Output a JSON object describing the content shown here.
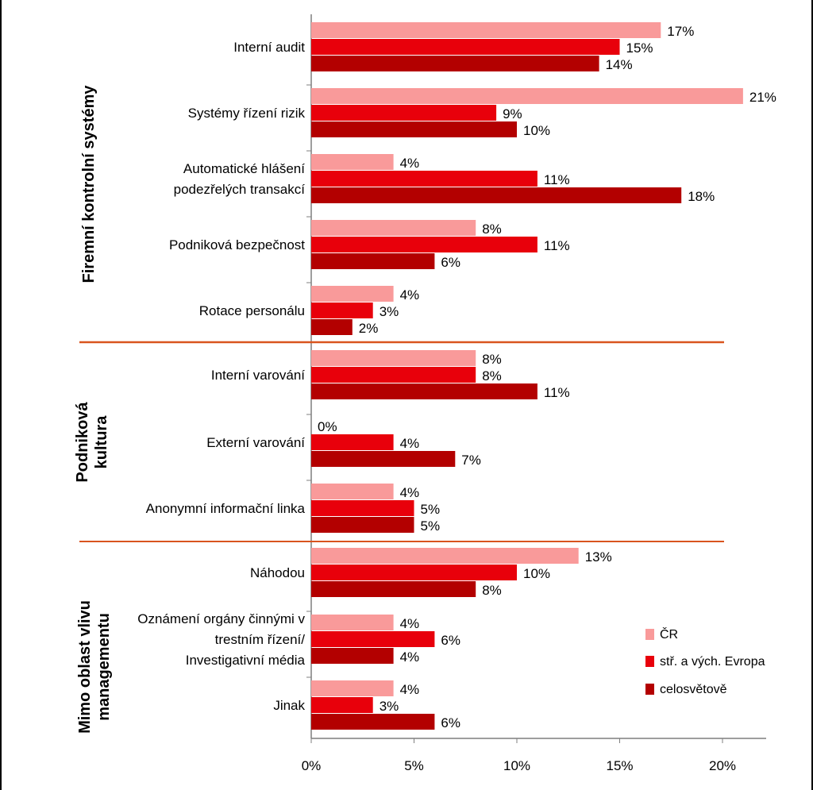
{
  "chart_data": {
    "type": "bar",
    "orientation": "horizontal",
    "categories": [
      [
        "Interní  audit"
      ],
      [
        "Systémy řízení rizik"
      ],
      [
        "Automatické hlášení",
        "podezřelých transakcí"
      ],
      [
        "Podniková bezpečnost"
      ],
      [
        "Rotace personálu"
      ],
      [
        "Interní  varování"
      ],
      [
        "Externí varování"
      ],
      [
        "Anonymní informační linka"
      ],
      [
        "Náhodou"
      ],
      [
        "Oznámení orgány činnými v",
        "trestním řízení/",
        "Investigativní média"
      ],
      [
        "Jinak"
      ]
    ],
    "series": [
      {
        "name": "ČR",
        "color": "#F99A9A",
        "values": [
          17,
          21,
          4,
          8,
          4,
          8,
          0,
          4,
          13,
          4,
          4
        ],
        "labels": [
          "17%",
          "21%",
          "4%",
          "8%",
          "4%",
          "8%",
          "0%",
          "4%",
          "13%",
          "4%",
          "4%"
        ]
      },
      {
        "name": "stř. a vých. Evropa",
        "color": "#E8000B",
        "values": [
          15,
          9,
          11,
          11,
          3,
          8,
          4,
          5,
          10,
          6,
          3
        ],
        "labels": [
          "15%",
          "9%",
          "11%",
          "11%",
          "3%",
          "8%",
          "4%",
          "5%",
          "10%",
          "6%",
          "3%"
        ]
      },
      {
        "name": "celosvětově",
        "color": "#B30000",
        "values": [
          14,
          10,
          18,
          6,
          2,
          11,
          7,
          5,
          8,
          4,
          6
        ],
        "labels": [
          "14%",
          "10%",
          "18%",
          "6%",
          "2%",
          "11%",
          "7%",
          "5%",
          "8%",
          "4%",
          "6%"
        ]
      }
    ],
    "groups": [
      {
        "label": [
          "Firemní kontrolní systémy"
        ],
        "categories": [
          0,
          1,
          2,
          3,
          4
        ]
      },
      {
        "label": [
          "Podniková",
          "kultura"
        ],
        "categories": [
          5,
          6,
          7
        ]
      },
      {
        "label": [
          "Mimo oblast vlivu",
          "managementu"
        ],
        "categories": [
          8,
          9,
          10
        ]
      }
    ],
    "xlim": [
      0,
      22
    ],
    "x_ticks": [
      0,
      5,
      10,
      15,
      20
    ],
    "x_tick_labels": [
      "0%",
      "5%",
      "10%",
      "15%",
      "20%"
    ],
    "legend_position": "right",
    "separator_color": "#D9541E"
  }
}
